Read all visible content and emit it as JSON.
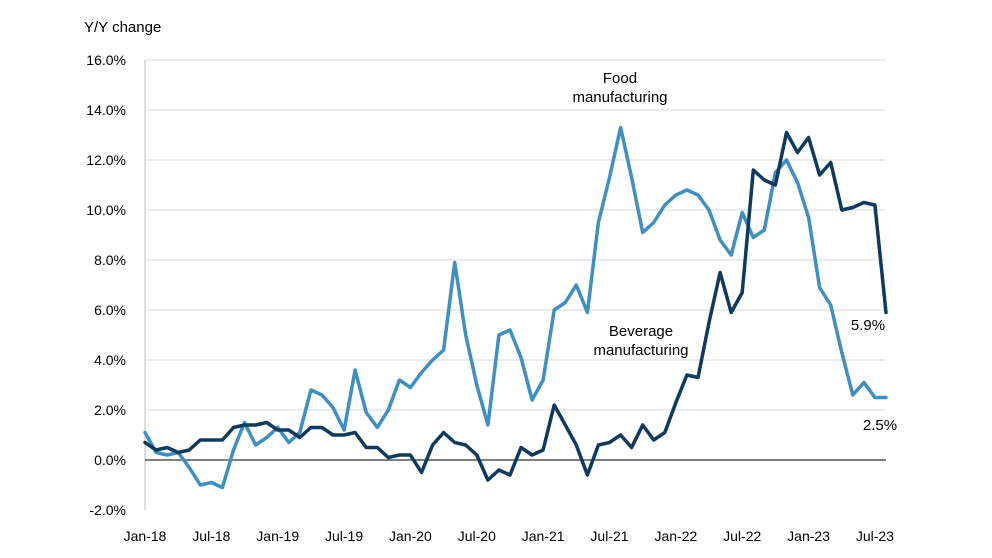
{
  "chart_data": {
    "type": "line",
    "title": "",
    "ylabel": "Y/Y change",
    "xlabel": "",
    "ylim": [
      -2,
      16
    ],
    "ytick_labels": [
      "-2.0%",
      "0.0%",
      "2.0%",
      "4.0%",
      "6.0%",
      "8.0%",
      "10.0%",
      "12.0%",
      "14.0%",
      "16.0%"
    ],
    "ytick_values": [
      -2,
      0,
      2,
      4,
      6,
      8,
      10,
      12,
      14,
      16
    ],
    "xtick_labels": [
      "Jan-18",
      "Jul-18",
      "Jan-19",
      "Jul-19",
      "Jan-20",
      "Jul-20",
      "Jan-21",
      "Jul-21",
      "Jan-22",
      "Jul-22",
      "Jan-23",
      "Jul-23"
    ],
    "x_start": "Jan-18",
    "x_end": "Aug-23",
    "grid": "horizontal",
    "legend": "none",
    "series": [
      {
        "name": "Food manufacturing",
        "color": "#3d8fc6",
        "annotation": [
          "Food",
          "manufacturing"
        ],
        "end_label": "2.5%",
        "values": [
          1.1,
          0.3,
          0.2,
          0.3,
          -0.3,
          -1.0,
          -0.9,
          -1.1,
          0.4,
          1.5,
          0.6,
          0.9,
          1.3,
          0.7,
          1.1,
          2.8,
          2.6,
          2.1,
          1.2,
          3.6,
          1.9,
          1.3,
          2.0,
          3.2,
          2.9,
          3.5,
          4.0,
          4.4,
          7.9,
          5.0,
          3.0,
          1.4,
          5.0,
          5.2,
          4.1,
          2.4,
          3.2,
          6.0,
          6.3,
          7.0,
          5.9,
          9.5,
          11.3,
          13.3,
          11.3,
          9.1,
          9.5,
          10.2,
          10.6,
          10.8,
          10.6,
          10.0,
          8.8,
          8.2,
          9.9,
          8.9,
          9.2,
          11.5,
          12.0,
          11.1,
          9.7,
          6.9,
          6.2,
          4.3,
          2.6,
          3.1,
          2.5,
          2.5
        ]
      },
      {
        "name": "Beverage manufacturing",
        "color": "#0d3a5e",
        "annotation": [
          "Beverage",
          "manufacturing"
        ],
        "end_label": "5.9%",
        "values": [
          0.7,
          0.4,
          0.5,
          0.3,
          0.4,
          0.8,
          0.8,
          0.8,
          1.3,
          1.4,
          1.4,
          1.5,
          1.2,
          1.2,
          0.9,
          1.3,
          1.3,
          1.0,
          1.0,
          1.1,
          0.5,
          0.5,
          0.1,
          0.2,
          0.2,
          -0.5,
          0.6,
          1.1,
          0.7,
          0.6,
          0.2,
          -0.8,
          -0.4,
          -0.6,
          0.5,
          0.2,
          0.4,
          2.2,
          1.4,
          0.6,
          -0.6,
          0.6,
          0.7,
          1.0,
          0.5,
          1.4,
          0.8,
          1.1,
          2.3,
          3.4,
          3.3,
          5.5,
          7.5,
          5.9,
          6.7,
          11.6,
          11.2,
          11.0,
          13.1,
          12.3,
          12.9,
          11.4,
          11.9,
          10.0,
          10.1,
          10.3,
          10.2,
          5.9
        ]
      }
    ]
  }
}
